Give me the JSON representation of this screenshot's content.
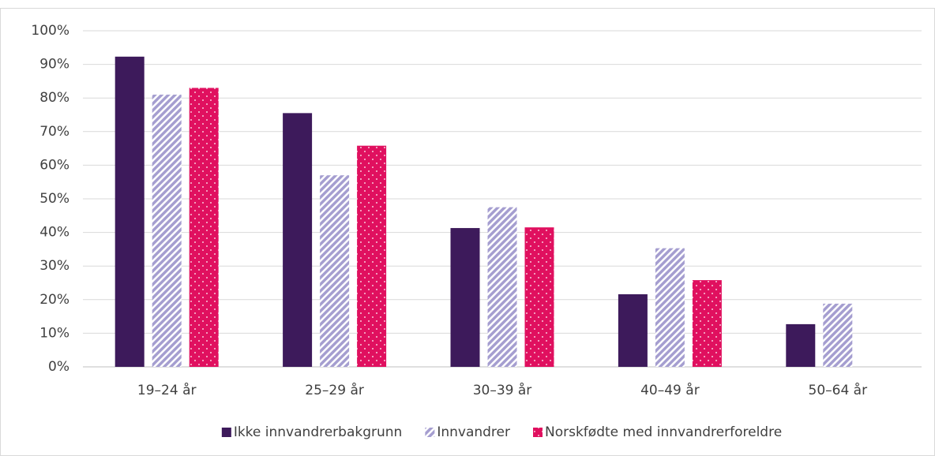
{
  "chart_data": {
    "type": "bar",
    "categories": [
      "19–24 år",
      "25–29 år",
      "30–39 år",
      "40–49 år",
      "50–64 år"
    ],
    "series": [
      {
        "name": "Ikke innvandrerbakgrunn",
        "color": "#3d1a5b",
        "pattern": "solid",
        "values": [
          92.3,
          75.5,
          41.3,
          21.6,
          12.7
        ]
      },
      {
        "name": "Innvandrer",
        "color": "#a59ed0",
        "pattern": "hatch",
        "values": [
          81,
          57,
          47.5,
          35.3,
          18.8
        ]
      },
      {
        "name": "Norskfødte med innvandrerforeldre",
        "color": "#e0105f",
        "pattern": "dots",
        "values": [
          83,
          65.8,
          41.5,
          25.8,
          null
        ]
      }
    ],
    "ylim": [
      0,
      100
    ],
    "yticks": [
      {
        "value": 0,
        "label": "0%"
      },
      {
        "value": 10,
        "label": "10%"
      },
      {
        "value": 20,
        "label": "20%"
      },
      {
        "value": 30,
        "label": "30%"
      },
      {
        "value": 40,
        "label": "40%"
      },
      {
        "value": 50,
        "label": "50%"
      },
      {
        "value": 60,
        "label": "60%"
      },
      {
        "value": 70,
        "label": "70%"
      },
      {
        "value": 80,
        "label": "80%"
      },
      {
        "value": 90,
        "label": "90%"
      },
      {
        "value": 100,
        "label": "100%"
      }
    ],
    "grid": true,
    "legend": "bottom"
  }
}
